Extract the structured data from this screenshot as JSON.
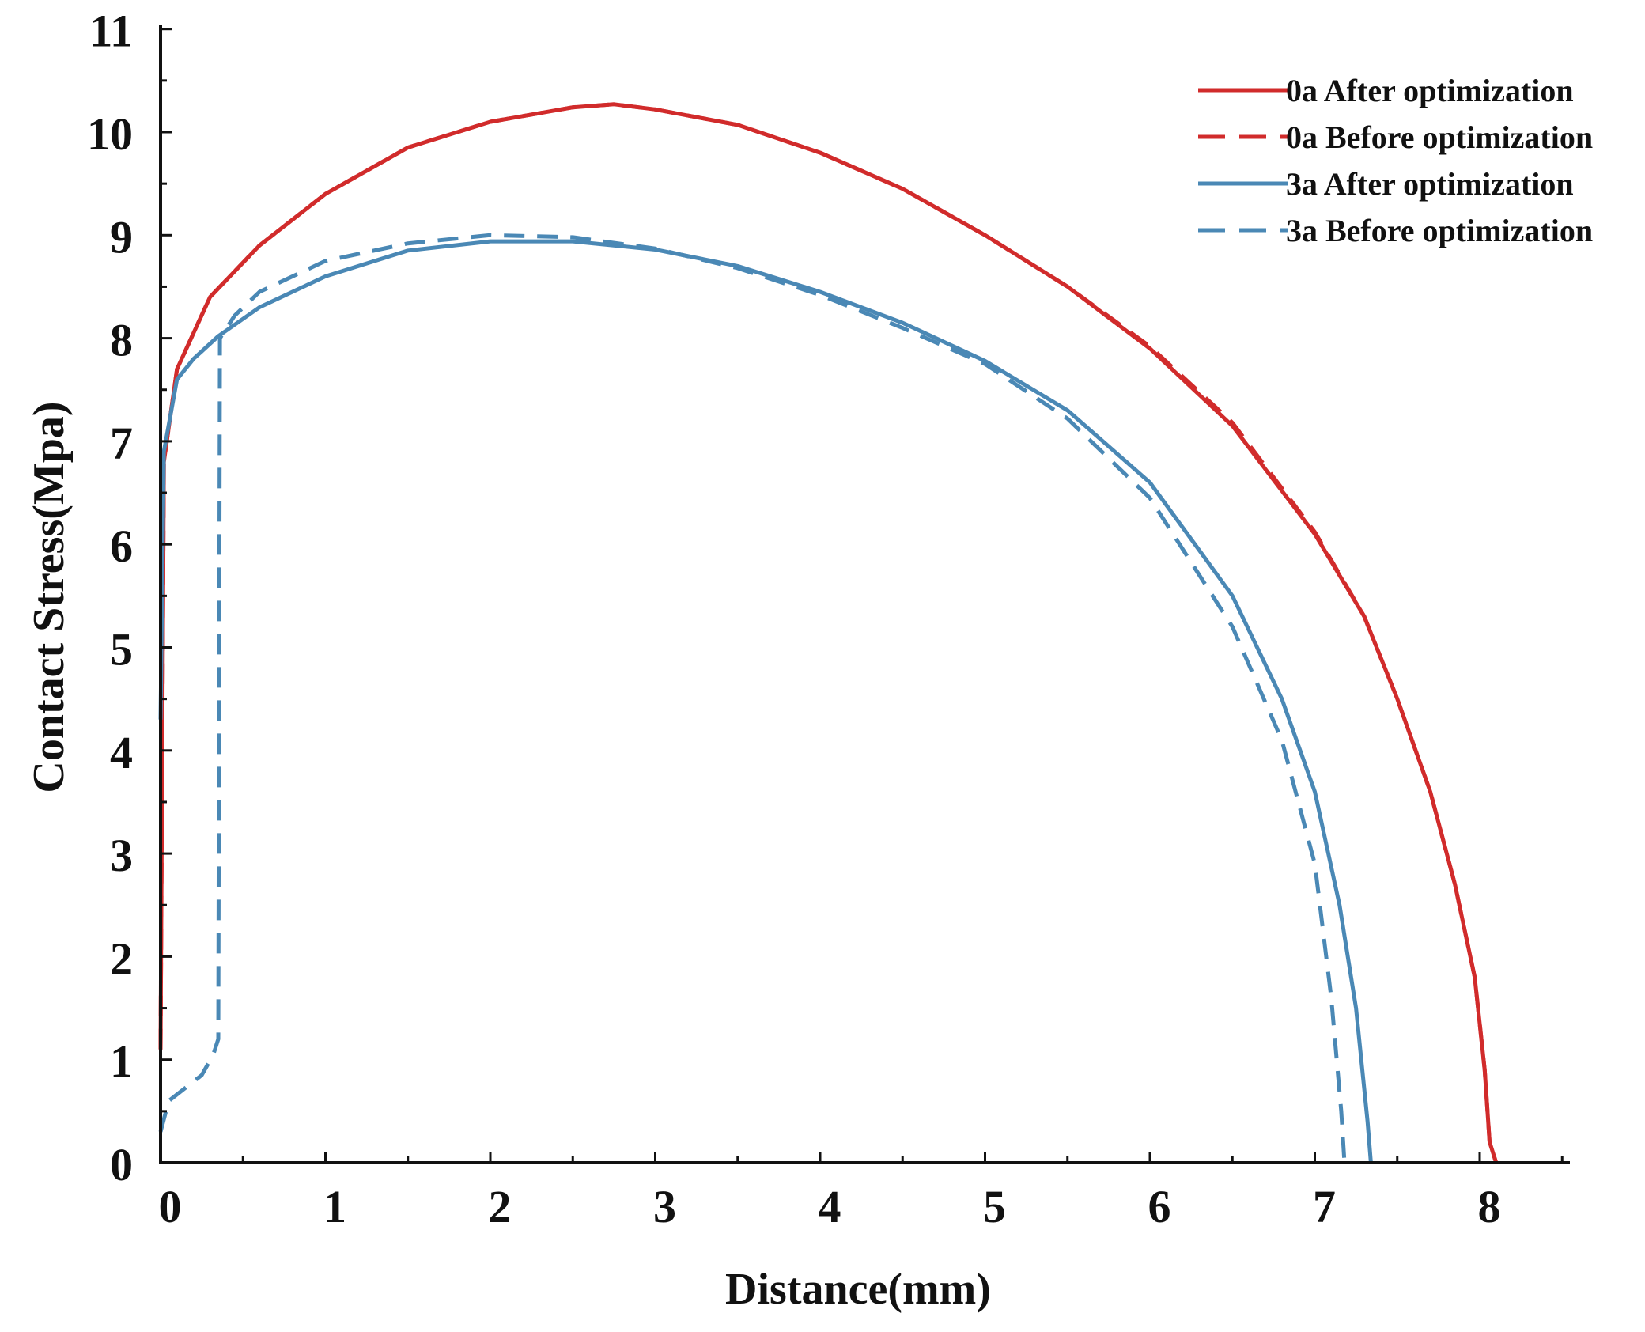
{
  "chart_data": {
    "type": "line",
    "title": "",
    "xlabel": "Distance(mm)",
    "ylabel": "Contact Stress(Mpa)",
    "xlim": [
      0,
      8.5
    ],
    "ylim": [
      0,
      11
    ],
    "xticks": [
      0,
      1,
      2,
      3,
      4,
      5,
      6,
      7,
      8
    ],
    "yticks": [
      0,
      1,
      2,
      3,
      4,
      5,
      6,
      7,
      8,
      9,
      10,
      11
    ],
    "grid": false,
    "legend_position": "top-right",
    "series": [
      {
        "name": "0a After optimization",
        "color": "#d12b2b",
        "dash": "solid",
        "points": [
          [
            0,
            1.1
          ],
          [
            0.02,
            6.8
          ],
          [
            0.1,
            7.7
          ],
          [
            0.3,
            8.4
          ],
          [
            0.6,
            8.9
          ],
          [
            1.0,
            9.4
          ],
          [
            1.5,
            9.85
          ],
          [
            2.0,
            10.1
          ],
          [
            2.5,
            10.24
          ],
          [
            2.75,
            10.27
          ],
          [
            3.0,
            10.22
          ],
          [
            3.5,
            10.07
          ],
          [
            4.0,
            9.8
          ],
          [
            4.5,
            9.45
          ],
          [
            5.0,
            9.0
          ],
          [
            5.5,
            8.5
          ],
          [
            6.0,
            7.9
          ],
          [
            6.5,
            7.15
          ],
          [
            7.0,
            6.1
          ],
          [
            7.3,
            5.3
          ],
          [
            7.5,
            4.5
          ],
          [
            7.7,
            3.6
          ],
          [
            7.85,
            2.7
          ],
          [
            7.97,
            1.8
          ],
          [
            8.03,
            0.9
          ],
          [
            8.06,
            0.2
          ],
          [
            8.1,
            0.0
          ]
        ]
      },
      {
        "name": "0a Before optimization",
        "color": "#d12b2b",
        "dash": "dashed",
        "points": [
          [
            0,
            1.1
          ],
          [
            0.02,
            6.8
          ],
          [
            0.1,
            7.7
          ],
          [
            0.3,
            8.4
          ],
          [
            0.6,
            8.9
          ],
          [
            1.0,
            9.4
          ],
          [
            1.5,
            9.85
          ],
          [
            2.0,
            10.1
          ],
          [
            2.5,
            10.24
          ],
          [
            2.75,
            10.27
          ],
          [
            3.0,
            10.22
          ],
          [
            3.5,
            10.07
          ],
          [
            4.0,
            9.8
          ],
          [
            4.5,
            9.45
          ],
          [
            5.0,
            9.0
          ],
          [
            5.5,
            8.5
          ],
          [
            6.0,
            7.92
          ],
          [
            6.5,
            7.18
          ],
          [
            7.0,
            6.12
          ],
          [
            7.3,
            5.3
          ],
          [
            7.5,
            4.5
          ],
          [
            7.7,
            3.6
          ],
          [
            7.85,
            2.7
          ],
          [
            7.97,
            1.8
          ],
          [
            8.03,
            0.9
          ],
          [
            8.06,
            0.2
          ],
          [
            8.1,
            0.0
          ]
        ]
      },
      {
        "name": "3a After optimization",
        "color": "#4a88b5",
        "dash": "solid",
        "points": [
          [
            0,
            4.3
          ],
          [
            0.02,
            6.9
          ],
          [
            0.1,
            7.6
          ],
          [
            0.2,
            7.8
          ],
          [
            0.35,
            8.02
          ],
          [
            0.6,
            8.3
          ],
          [
            1.0,
            8.6
          ],
          [
            1.5,
            8.85
          ],
          [
            2.0,
            8.94
          ],
          [
            2.5,
            8.94
          ],
          [
            3.0,
            8.86
          ],
          [
            3.5,
            8.7
          ],
          [
            4.0,
            8.45
          ],
          [
            4.5,
            8.15
          ],
          [
            5.0,
            7.78
          ],
          [
            5.5,
            7.3
          ],
          [
            6.0,
            6.6
          ],
          [
            6.5,
            5.5
          ],
          [
            6.8,
            4.5
          ],
          [
            7.0,
            3.6
          ],
          [
            7.15,
            2.5
          ],
          [
            7.25,
            1.5
          ],
          [
            7.32,
            0.4
          ],
          [
            7.34,
            0.0
          ]
        ]
      },
      {
        "name": "3a Before optimization",
        "color": "#4a88b5",
        "dash": "dashed",
        "points": [
          [
            0,
            0.3
          ],
          [
            0.05,
            0.6
          ],
          [
            0.25,
            0.85
          ],
          [
            0.32,
            1.05
          ],
          [
            0.35,
            1.2
          ],
          [
            0.36,
            8.0
          ],
          [
            0.45,
            8.22
          ],
          [
            0.6,
            8.45
          ],
          [
            1.0,
            8.75
          ],
          [
            1.5,
            8.92
          ],
          [
            2.0,
            9.0
          ],
          [
            2.5,
            8.98
          ],
          [
            3.0,
            8.87
          ],
          [
            3.5,
            8.68
          ],
          [
            4.0,
            8.42
          ],
          [
            4.5,
            8.1
          ],
          [
            5.0,
            7.75
          ],
          [
            5.5,
            7.22
          ],
          [
            6.0,
            6.45
          ],
          [
            6.5,
            5.2
          ],
          [
            6.8,
            4.1
          ],
          [
            7.0,
            2.9
          ],
          [
            7.1,
            1.6
          ],
          [
            7.16,
            0.5
          ],
          [
            7.18,
            0.0
          ]
        ]
      }
    ]
  }
}
